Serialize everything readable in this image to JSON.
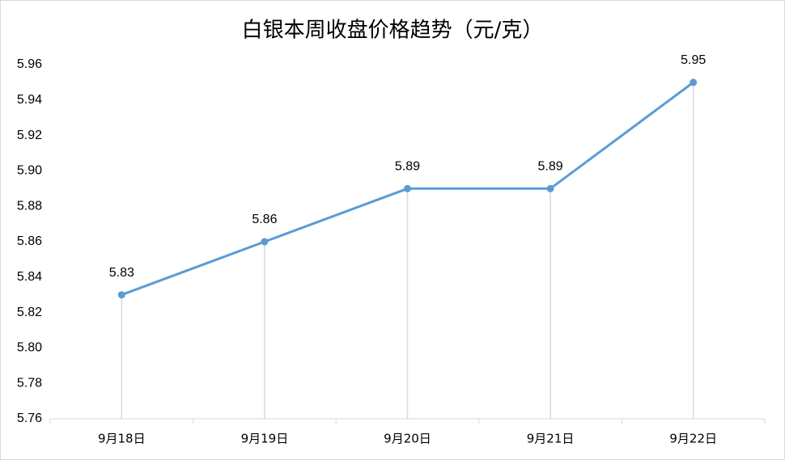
{
  "chart_data": {
    "type": "line",
    "title": "白银本周收盘价格趋势（元/克）",
    "categories": [
      "9月18日",
      "9月19日",
      "9月20日",
      "9月21日",
      "9月22日"
    ],
    "values": [
      5.83,
      5.86,
      5.89,
      5.89,
      5.95
    ],
    "color": "#5b9bd5",
    "ylim": [
      5.76,
      5.96
    ],
    "yticks": [
      5.76,
      5.78,
      {
        "value": 5.8,
        "label": "5.80"
      },
      5.82,
      5.84,
      5.86,
      5.88,
      {
        "value": 5.9,
        "label": "5.90"
      },
      5.92,
      5.94,
      5.96
    ],
    "grid": false,
    "drop_lines": true
  }
}
